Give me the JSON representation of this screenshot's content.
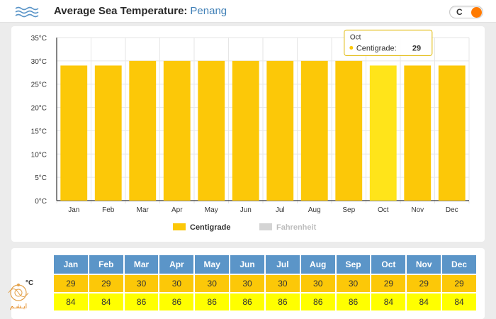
{
  "header": {
    "title": "Average Sea Temperature:",
    "location": "Penang",
    "unit_toggle": "C"
  },
  "colors": {
    "centigrade": "#fcc808",
    "centigrade_highlight": "#ffe41a",
    "fahrenheit": "#d4d4d4",
    "table_header": "#5b95c8",
    "fahrenheit_row": "#ffff00",
    "toggle_knob": "#ff7a00"
  },
  "chart_data": {
    "type": "bar",
    "categories": [
      "Jan",
      "Feb",
      "Mar",
      "Apr",
      "May",
      "Jun",
      "Jul",
      "Aug",
      "Sep",
      "Oct",
      "Nov",
      "Dec"
    ],
    "series": [
      {
        "name": "Centigrade",
        "values": [
          29,
          29,
          30,
          30,
          30,
          30,
          30,
          30,
          30,
          29,
          29,
          29
        ]
      },
      {
        "name": "Fahrenheit",
        "hidden": true,
        "values": [
          84,
          84,
          86,
          86,
          86,
          86,
          86,
          86,
          86,
          84,
          84,
          84
        ]
      }
    ],
    "y_ticks": [
      "0°C",
      "5°C",
      "10°C",
      "15°C",
      "20°C",
      "25°C",
      "30°C",
      "35°C"
    ],
    "ylim": [
      0,
      35
    ],
    "grid": true,
    "legend": "bottom",
    "tooltip": {
      "category": "Oct",
      "series": "Centigrade",
      "label": "Centigrade:",
      "value": "29"
    }
  },
  "table": {
    "unit_label": "°C",
    "months": [
      "Jan",
      "Feb",
      "Mar",
      "Apr",
      "May",
      "Jun",
      "Jul",
      "Aug",
      "Sep",
      "Oct",
      "Nov",
      "Dec"
    ],
    "celsius": [
      "29",
      "29",
      "30",
      "30",
      "30",
      "30",
      "30",
      "30",
      "30",
      "29",
      "29",
      "29"
    ],
    "fahrenheit": [
      "84",
      "84",
      "86",
      "86",
      "86",
      "86",
      "86",
      "86",
      "86",
      "84",
      "84",
      "84"
    ]
  },
  "logo": {
    "text": "ایـشـم",
    "icon": "ornament-logo-icon"
  }
}
